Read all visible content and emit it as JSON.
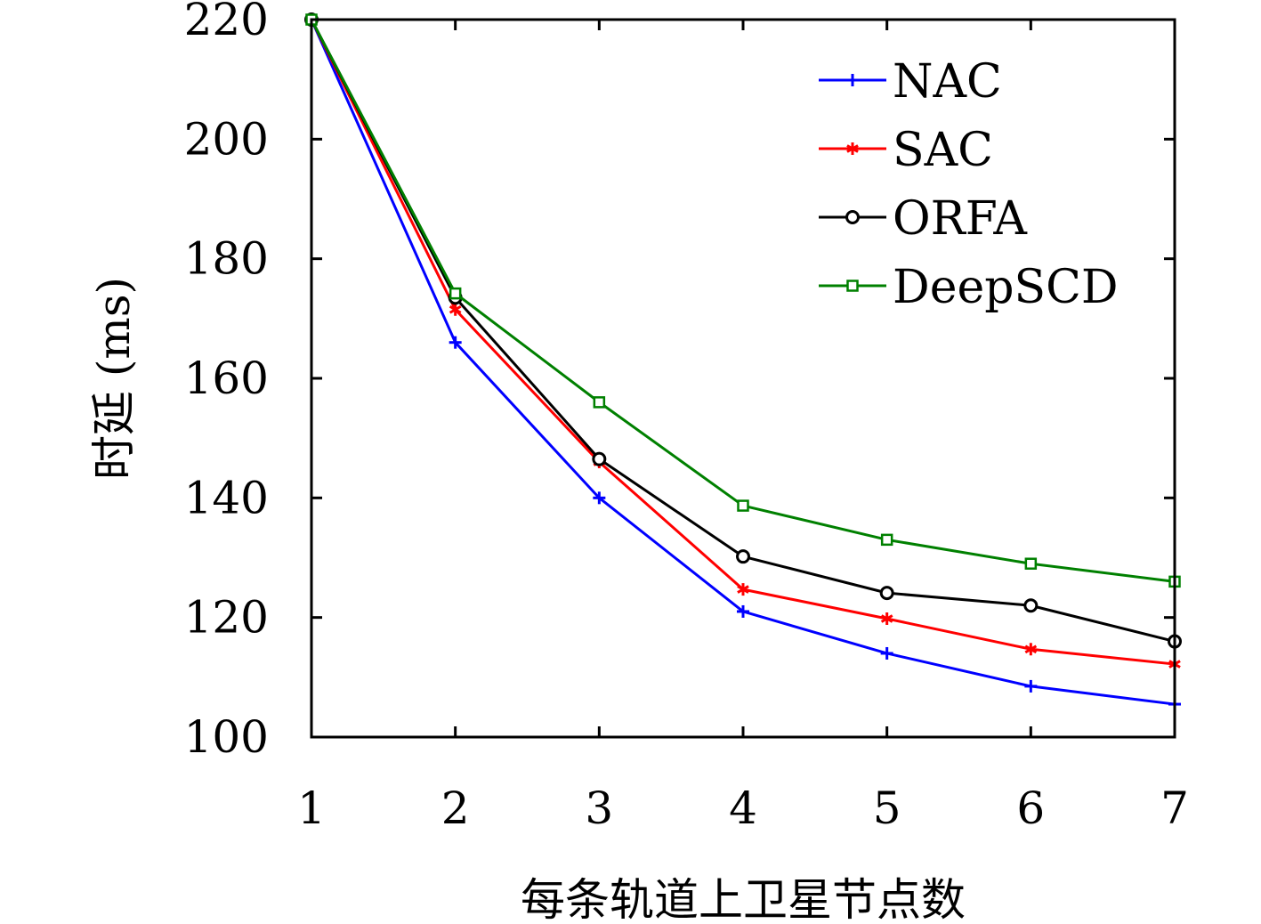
{
  "chart_data": {
    "type": "line",
    "xlabel": "每条轨道上卫星节点数",
    "ylabel": "时延 (ms)",
    "xlim": [
      1,
      7
    ],
    "ylim": [
      100,
      220
    ],
    "x": [
      1,
      2,
      3,
      4,
      5,
      6,
      7
    ],
    "xticks": [
      "1",
      "2",
      "3",
      "4",
      "5",
      "6",
      "7"
    ],
    "yticks": [
      "100",
      "120",
      "140",
      "160",
      "180",
      "200",
      "220"
    ],
    "grid": false,
    "legend_position": "top-right",
    "series": [
      {
        "name": "NAC",
        "color": "#0000ff",
        "marker": "plus",
        "values": [
          220,
          166,
          140,
          121,
          114,
          108.5,
          105.5
        ]
      },
      {
        "name": "SAC",
        "color": "#ff0000",
        "marker": "asterisk",
        "values": [
          220,
          171.5,
          146,
          124.7,
          119.8,
          114.7,
          112.2
        ]
      },
      {
        "name": "ORFA",
        "color": "#000000",
        "marker": "circle",
        "values": [
          220,
          173.5,
          146.5,
          130.2,
          124.1,
          122,
          116
        ]
      },
      {
        "name": "DeepSCD",
        "color": "#008000",
        "marker": "square",
        "values": [
          220,
          174.2,
          156,
          138.7,
          133,
          129,
          126
        ]
      }
    ]
  }
}
